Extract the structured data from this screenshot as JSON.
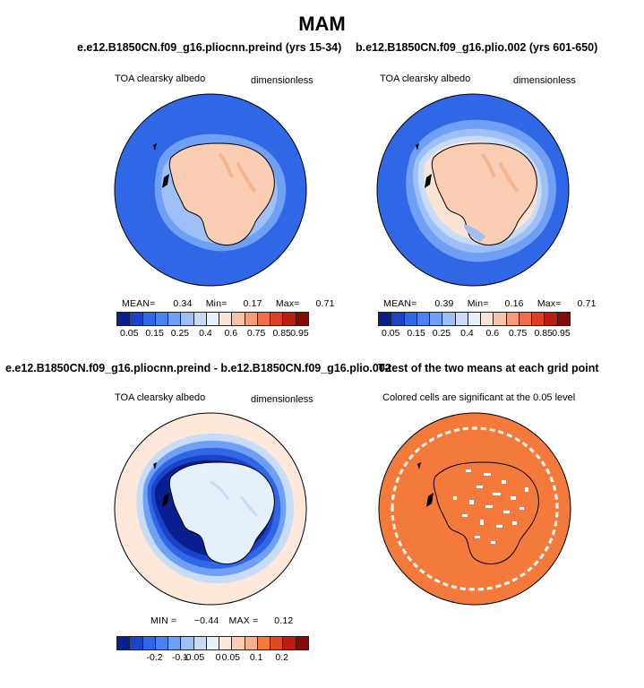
{
  "figure": {
    "title": "MAM"
  },
  "chart_data": [
    {
      "type": "heatmap",
      "title": "e.e12.B1850CN.f09_g16.pliocnn.preind (yrs 15-34)",
      "variable": "TOA clearsky albedo",
      "units": "dimensionless",
      "projection": "south polar stereographic",
      "stats": {
        "mean": 0.34,
        "min": 0.17,
        "max": 0.71
      },
      "colorbar": {
        "levels": [
          0.05,
          0.1,
          0.15,
          0.2,
          0.25,
          0.3,
          0.4,
          0.5,
          0.6,
          0.7,
          0.75,
          0.8,
          0.85,
          0.9,
          0.95
        ],
        "tick_labels": [
          "0.05",
          "0.15",
          "0.25",
          "0.4",
          "0.6",
          "0.75",
          "0.85",
          "0.95"
        ],
        "colors": [
          "#0a1f8f",
          "#1a43c8",
          "#2f67e6",
          "#4a82f0",
          "#6fa0f5",
          "#9cc0f7",
          "#c7dcf6",
          "#e6f0fb",
          "#fbe4d4",
          "#f8c2a6",
          "#f59b78",
          "#ef6e47",
          "#df3e22",
          "#bb1c10",
          "#870a06"
        ]
      }
    },
    {
      "type": "heatmap",
      "title": "b.e12.B1850CN.f09_g16.plio.002 (yrs 601-650)",
      "variable": "TOA clearsky albedo",
      "units": "dimensionless",
      "projection": "south polar stereographic",
      "stats": {
        "mean": 0.39,
        "min": 0.16,
        "max": 0.71
      },
      "colorbar": {
        "levels": [
          0.05,
          0.1,
          0.15,
          0.2,
          0.25,
          0.3,
          0.4,
          0.5,
          0.6,
          0.7,
          0.75,
          0.8,
          0.85,
          0.9,
          0.95
        ],
        "tick_labels": [
          "0.05",
          "0.15",
          "0.25",
          "0.4",
          "0.6",
          "0.75",
          "0.85",
          "0.95"
        ]
      }
    },
    {
      "type": "heatmap",
      "title": "e.e12.B1850CN.f09_g16.pliocnn.preind - b.e12.B1850CN.f09_g16.plio.002",
      "variable": "TOA clearsky albedo",
      "units": "dimensionless",
      "projection": "south polar stereographic",
      "stats": {
        "min": -0.44,
        "max": 0.12
      },
      "colorbar": {
        "tick_labels": [
          "-0.2",
          "-0.1",
          "-0.05",
          "0",
          "0.05",
          "0.1",
          "0.2"
        ]
      }
    },
    {
      "type": "heatmap",
      "title": "T-test of the two means at each grid point",
      "variable": "Colored cells are significant at the 0.05 level",
      "projection": "south polar stereographic",
      "significant_color": "#f47a3c"
    }
  ],
  "labels": {
    "mean_label": "MEAN=",
    "min_label": "Min=",
    "max_label": "Max=",
    "diff_min_label": "MIN =",
    "diff_max_label": "MAX =",
    "p1_mean": "0.34",
    "p1_min": "0.17",
    "p1_max": "0.71",
    "p2_mean": "0.39",
    "p2_min": "0.16",
    "p2_max": "0.71",
    "p3_min": "−0.44",
    "p3_max": "0.12"
  },
  "colors": {
    "ocean_dark": "#2f67e6",
    "continent": "#fbcdb2",
    "ice_ridge": "#f5b48e",
    "diff_dark": "#0a1f8f",
    "diff_pale": "#fde8da",
    "ttest": "#f47a3c"
  }
}
